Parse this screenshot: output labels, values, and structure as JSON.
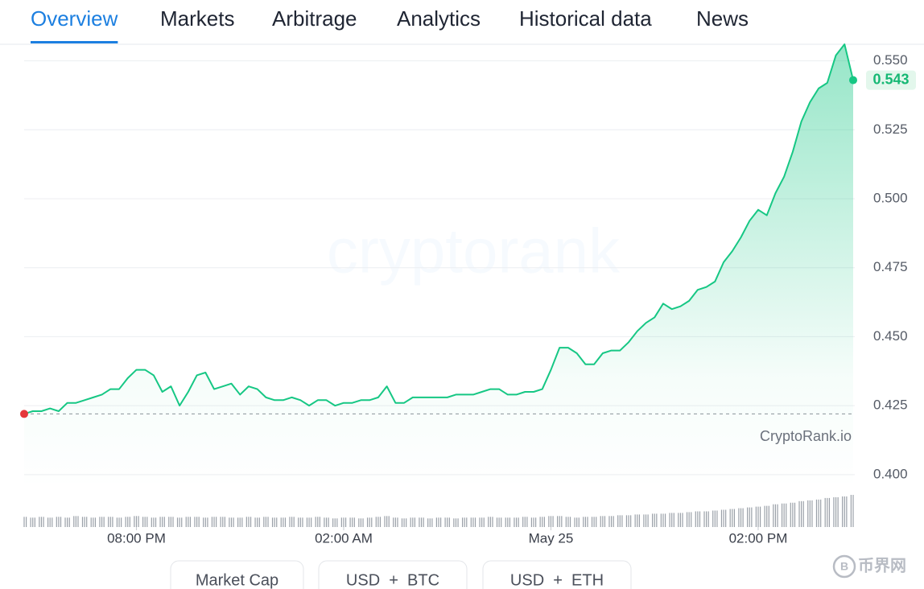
{
  "tabs": [
    "Overview",
    "Markets",
    "Arbitrage",
    "Analytics",
    "Historical data",
    "News"
  ],
  "buttons": [
    "Market Cap",
    "USD  +  BTC",
    "USD  +  ETH"
  ],
  "watermark": "cryptorank",
  "source": "CryptoRank.io",
  "corner_logo": "币界网",
  "chart_data": {
    "type": "line",
    "series": [
      {
        "color": "#16c784",
        "values": [
          0.422,
          0.423,
          0.423,
          0.424,
          0.423,
          0.426,
          0.426,
          0.427,
          0.428,
          0.429,
          0.431,
          0.431,
          0.435,
          0.438,
          0.438,
          0.436,
          0.43,
          0.432,
          0.425,
          0.43,
          0.436,
          0.437,
          0.431,
          0.432,
          0.433,
          0.429,
          0.432,
          0.431,
          0.428,
          0.427,
          0.427,
          0.428,
          0.427,
          0.425,
          0.427,
          0.427,
          0.425,
          0.426,
          0.426,
          0.427,
          0.427,
          0.428,
          0.432,
          0.426,
          0.426,
          0.428,
          0.428,
          0.428,
          0.428,
          0.428,
          0.429,
          0.429,
          0.429,
          0.43,
          0.431,
          0.431,
          0.429,
          0.429,
          0.43,
          0.43,
          0.431,
          0.438,
          0.446,
          0.446,
          0.444,
          0.44,
          0.44,
          0.444,
          0.445,
          0.445,
          0.448,
          0.452,
          0.455,
          0.457,
          0.462,
          0.46,
          0.461,
          0.463,
          0.467,
          0.468,
          0.47,
          0.477,
          0.481,
          0.486,
          0.492,
          0.496,
          0.494,
          0.502,
          0.508,
          0.517,
          0.528,
          0.535,
          0.54,
          0.542,
          0.552,
          0.556,
          0.543
        ]
      }
    ],
    "volume": {
      "color": "#9aa0a8",
      "values": [
        13,
        12,
        13,
        12,
        13,
        12,
        14,
        13,
        12,
        13,
        13,
        12,
        13,
        14,
        13,
        12,
        13,
        13,
        12,
        13,
        13,
        12,
        13,
        13,
        12,
        12,
        13,
        12,
        13,
        12,
        12,
        13,
        12,
        12,
        13,
        12,
        11,
        12,
        12,
        11,
        12,
        13,
        14,
        12,
        11,
        12,
        12,
        11,
        12,
        12,
        11,
        12,
        12,
        12,
        13,
        12,
        12,
        12,
        13,
        12,
        13,
        14,
        14,
        13,
        12,
        13,
        13,
        14,
        14,
        15,
        15,
        16,
        16,
        17,
        17,
        18,
        18,
        19,
        20,
        20,
        21,
        22,
        23,
        24,
        25,
        26,
        27,
        29,
        30,
        31,
        33,
        34,
        35,
        37,
        38,
        39,
        41
      ]
    },
    "xlim": [
      0,
      96
    ],
    "xticks": [
      {
        "value": 13,
        "label": "08:00 PM"
      },
      {
        "value": 37,
        "label": "02:00 AM"
      },
      {
        "value": 61,
        "label": "May 25"
      },
      {
        "value": 85,
        "label": "02:00 PM"
      }
    ],
    "ylim": [
      0.395,
      0.556
    ],
    "yticks": [
      {
        "value": 0.4,
        "label": "0.400"
      },
      0.425,
      {
        "value": 0.45,
        "label": "0.450"
      },
      0.475,
      {
        "value": 0.5,
        "label": "0.500"
      },
      0.525,
      {
        "value": 0.55,
        "label": "0.550"
      }
    ],
    "grid": true
  }
}
